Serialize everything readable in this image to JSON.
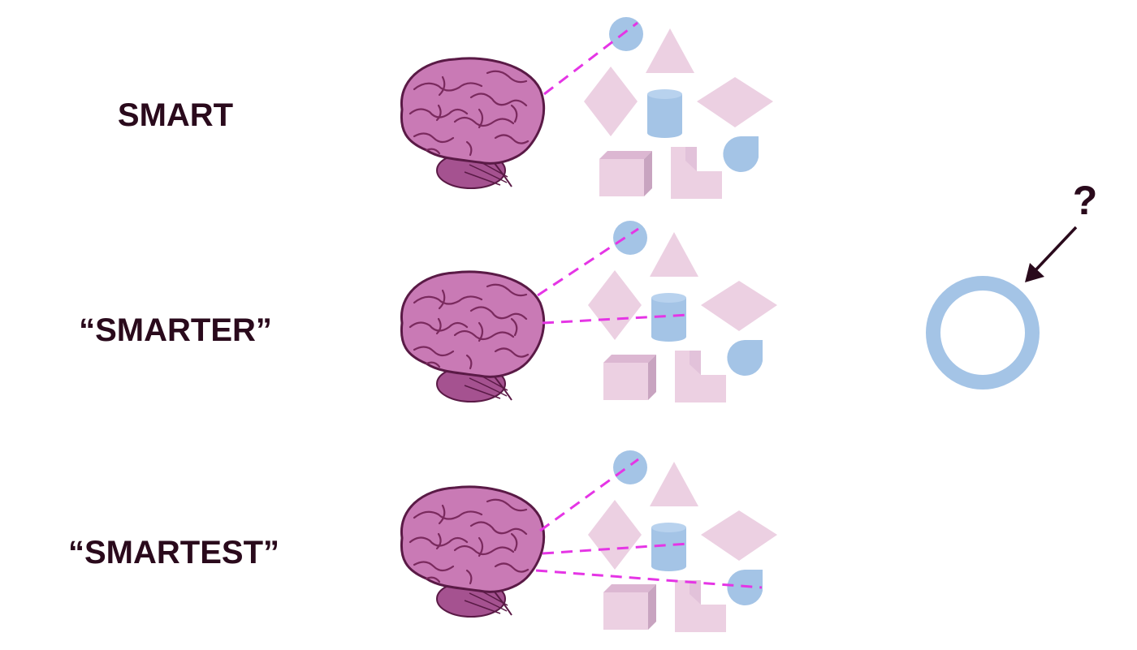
{
  "rows": [
    {
      "label": "SMART",
      "connections": [
        "circle"
      ]
    },
    {
      "label": "“SMARTER”",
      "connections": [
        "circle",
        "cylinder"
      ]
    },
    {
      "label": "“SMARTEST”",
      "connections": [
        "circle",
        "cylinder",
        "drop"
      ]
    }
  ],
  "query": {
    "symbol": "?",
    "shape": "ring"
  },
  "colors": {
    "pink_shape": "#ecd0e2",
    "pink_shape_shade": "#c8a4c0",
    "blue_shape": "#a4c4e6",
    "connection_line": "#e535e5",
    "brain_fill": "#c97ab5",
    "brain_outline": "#5a1a46",
    "text": "#2a0a1c"
  }
}
